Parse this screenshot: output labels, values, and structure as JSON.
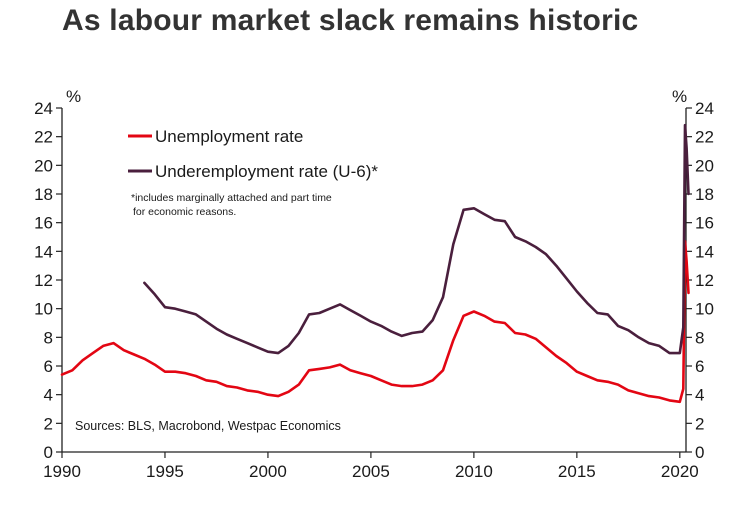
{
  "title": "As labour market slack remains historic",
  "chart_data": {
    "type": "line",
    "title": "As labour market slack remains historic",
    "left_unit": "%",
    "right_unit": "%",
    "xlim": [
      1990,
      2020.3
    ],
    "ylim": [
      0,
      24
    ],
    "x_ticks": [
      "1990",
      "1995",
      "2000",
      "2005",
      "2010",
      "2015",
      "2020"
    ],
    "y_ticks": [
      "0",
      "2",
      "4",
      "6",
      "8",
      "10",
      "12",
      "14",
      "16",
      "18",
      "20",
      "22",
      "24"
    ],
    "legend": [
      "Unemployment rate",
      "Underemployment rate (U-6)*"
    ],
    "note_line1": "*includes marginally attached and part time",
    "note_line2": "for economic reasons.",
    "source": "Sources: BLS, Macrobond, Westpac Economics",
    "series": [
      {
        "name": "Unemployment rate",
        "color": "#e30613",
        "x": [
          1990.0,
          1990.5,
          1991.0,
          1991.5,
          1992.0,
          1992.5,
          1993.0,
          1993.5,
          1994.0,
          1994.5,
          1995.0,
          1995.5,
          1996.0,
          1996.5,
          1997.0,
          1997.5,
          1998.0,
          1998.5,
          1999.0,
          1999.5,
          2000.0,
          2000.5,
          2001.0,
          2001.5,
          2002.0,
          2002.5,
          2003.0,
          2003.5,
          2004.0,
          2004.5,
          2005.0,
          2005.5,
          2006.0,
          2006.5,
          2007.0,
          2007.5,
          2008.0,
          2008.5,
          2009.0,
          2009.5,
          2010.0,
          2010.5,
          2011.0,
          2011.5,
          2012.0,
          2012.5,
          2013.0,
          2013.5,
          2014.0,
          2014.5,
          2015.0,
          2015.5,
          2016.0,
          2016.5,
          2017.0,
          2017.5,
          2018.0,
          2018.5,
          2019.0,
          2019.5,
          2020.0,
          2020.17,
          2020.25,
          2020.33,
          2020.42
        ],
        "values": [
          5.4,
          5.7,
          6.4,
          6.9,
          7.4,
          7.6,
          7.1,
          6.8,
          6.5,
          6.1,
          5.6,
          5.6,
          5.5,
          5.3,
          5.0,
          4.9,
          4.6,
          4.5,
          4.3,
          4.2,
          4.0,
          3.9,
          4.2,
          4.7,
          5.7,
          5.8,
          5.9,
          6.1,
          5.7,
          5.5,
          5.3,
          5.0,
          4.7,
          4.6,
          4.6,
          4.7,
          5.0,
          5.7,
          7.8,
          9.5,
          9.8,
          9.5,
          9.1,
          9.0,
          8.3,
          8.2,
          7.9,
          7.3,
          6.7,
          6.2,
          5.6,
          5.3,
          5.0,
          4.9,
          4.7,
          4.3,
          4.1,
          3.9,
          3.8,
          3.6,
          3.5,
          4.4,
          14.7,
          13.3,
          11.1
        ]
      },
      {
        "name": "Underemployment rate (U-6)*",
        "color": "#4a1f3d",
        "x": [
          1994.0,
          1994.5,
          1995.0,
          1995.5,
          1996.0,
          1996.5,
          1997.0,
          1997.5,
          1998.0,
          1998.5,
          1999.0,
          1999.5,
          2000.0,
          2000.5,
          2001.0,
          2001.5,
          2002.0,
          2002.5,
          2003.0,
          2003.5,
          2004.0,
          2004.5,
          2005.0,
          2005.5,
          2006.0,
          2006.5,
          2007.0,
          2007.5,
          2008.0,
          2008.5,
          2009.0,
          2009.5,
          2010.0,
          2010.5,
          2011.0,
          2011.5,
          2012.0,
          2012.5,
          2013.0,
          2013.5,
          2014.0,
          2014.5,
          2015.0,
          2015.5,
          2016.0,
          2016.5,
          2017.0,
          2017.5,
          2018.0,
          2018.5,
          2019.0,
          2019.5,
          2020.0,
          2020.17,
          2020.25,
          2020.33,
          2020.42
        ],
        "values": [
          11.8,
          11.0,
          10.1,
          10.0,
          9.8,
          9.6,
          9.1,
          8.6,
          8.2,
          7.9,
          7.6,
          7.3,
          7.0,
          6.9,
          7.4,
          8.3,
          9.6,
          9.7,
          10.0,
          10.3,
          9.9,
          9.5,
          9.1,
          8.8,
          8.4,
          8.1,
          8.3,
          8.4,
          9.2,
          10.8,
          14.5,
          16.9,
          17.0,
          16.6,
          16.2,
          16.1,
          15.0,
          14.7,
          14.3,
          13.8,
          13.0,
          12.1,
          11.2,
          10.4,
          9.7,
          9.6,
          8.8,
          8.5,
          8.0,
          7.6,
          7.4,
          6.9,
          6.9,
          8.7,
          22.8,
          21.2,
          18.0
        ]
      }
    ]
  }
}
